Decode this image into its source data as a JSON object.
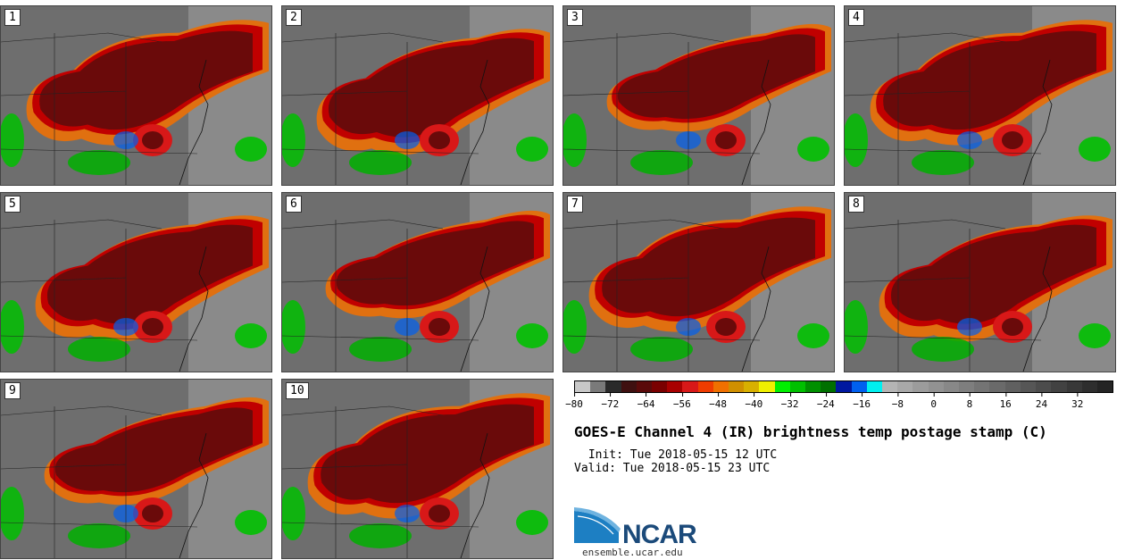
{
  "panels": [
    {
      "label": "1"
    },
    {
      "label": "2"
    },
    {
      "label": "3"
    },
    {
      "label": "4"
    },
    {
      "label": "5"
    },
    {
      "label": "6"
    },
    {
      "label": "7"
    },
    {
      "label": "8"
    },
    {
      "label": "9"
    },
    {
      "label": "10"
    }
  ],
  "colorbar": {
    "colors": [
      "#c8c8c8",
      "#7a7a7a",
      "#2a2a2a",
      "#3f1010",
      "#5a0a0a",
      "#7a0000",
      "#a80000",
      "#d81818",
      "#f03c00",
      "#f07000",
      "#d09000",
      "#d8b000",
      "#f0f000",
      "#00f000",
      "#00c000",
      "#009000",
      "#007000",
      "#0018a0",
      "#0060f0",
      "#00f0f0",
      "#b4b4b4",
      "#a8a8a8",
      "#9c9c9c",
      "#929292",
      "#888888",
      "#7e7e7e",
      "#747474",
      "#6a6a6a",
      "#606060",
      "#565656",
      "#4c4c4c",
      "#424242",
      "#383838",
      "#2e2e2e",
      "#242424"
    ],
    "ticks": [
      "−80",
      "−72",
      "−64",
      "−56",
      "−48",
      "−40",
      "−32",
      "−24",
      "−16",
      "−8",
      "0",
      "8",
      "16",
      "24",
      "32"
    ],
    "tick_values": [
      -80,
      -72,
      -64,
      -56,
      -48,
      -40,
      -32,
      -24,
      -16,
      -8,
      0,
      8,
      16,
      24,
      32
    ],
    "range": [
      -80,
      40
    ]
  },
  "title": "GOES-E Channel 4 (IR) brightness temp postage stamp (C)",
  "init": " Init: Tue 2018-05-15 12 UTC",
  "valid": "Valid: Tue 2018-05-15 23 UTC",
  "logo": {
    "text": "NCAR",
    "url": "ensemble.ucar.edu"
  }
}
